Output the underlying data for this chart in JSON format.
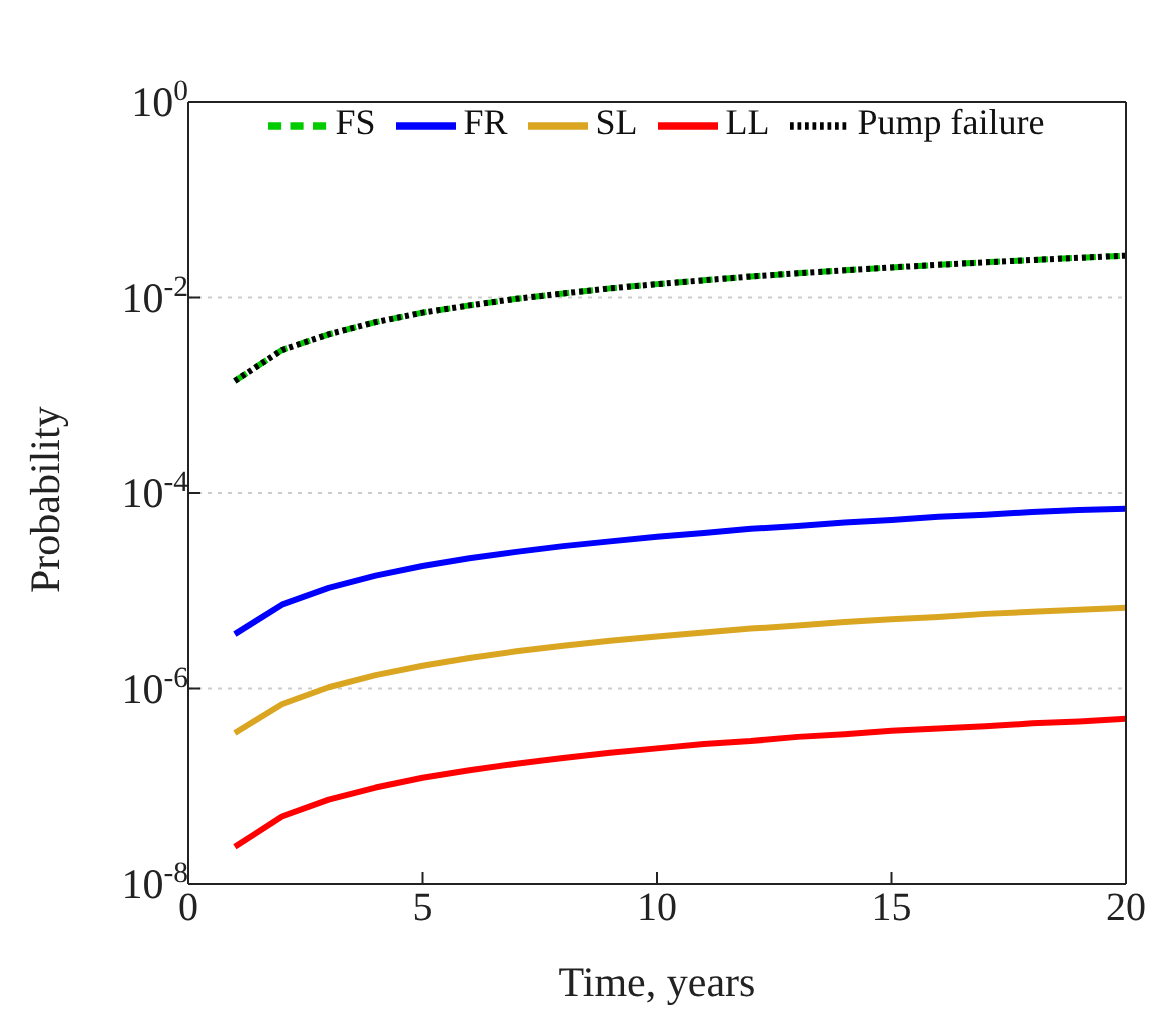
{
  "chart_data": {
    "type": "line",
    "xlabel": "Time, years",
    "ylabel": "Probability",
    "x": [
      1,
      2,
      3,
      4,
      5,
      6,
      7,
      8,
      9,
      10,
      11,
      12,
      13,
      14,
      15,
      16,
      17,
      18,
      19,
      20
    ],
    "series": [
      {
        "name": "FS",
        "color": "#00cc00",
        "line_style": "dashed",
        "values": [
          0.0014,
          0.0029,
          0.0042,
          0.0056,
          0.007,
          0.0083,
          0.0097,
          0.011,
          0.0124,
          0.0137,
          0.015,
          0.0164,
          0.0177,
          0.019,
          0.0203,
          0.0216,
          0.0229,
          0.0242,
          0.0255,
          0.0268
        ]
      },
      {
        "name": "FR",
        "color": "#0000ff",
        "line_style": "solid",
        "values": [
          3.6e-06,
          7.2e-06,
          1.07e-05,
          1.43e-05,
          1.79e-05,
          2.15e-05,
          2.5e-05,
          2.86e-05,
          3.2e-05,
          3.57e-05,
          3.9e-05,
          4.3e-05,
          4.6e-05,
          5e-05,
          5.3e-05,
          5.7e-05,
          6e-05,
          6.4e-05,
          6.7e-05,
          6.9e-05
        ]
      },
      {
        "name": "SL",
        "color": "#daa520",
        "line_style": "solid",
        "values": [
          3.5e-07,
          6.9e-07,
          1.03e-06,
          1.37e-06,
          1.71e-06,
          2.05e-06,
          2.4e-06,
          2.74e-06,
          3.08e-06,
          3.4e-06,
          3.75e-06,
          4.1e-06,
          4.4e-06,
          4.8e-06,
          5.1e-06,
          5.4e-06,
          5.8e-06,
          6.1e-06,
          6.4e-06,
          6.7e-06
        ]
      },
      {
        "name": "LL",
        "color": "#ff0000",
        "line_style": "solid",
        "values": [
          2.4e-08,
          4.9e-08,
          7.3e-08,
          9.7e-08,
          1.22e-07,
          1.46e-07,
          1.7e-07,
          1.95e-07,
          2.2e-07,
          2.44e-07,
          2.7e-07,
          2.9e-07,
          3.2e-07,
          3.4e-07,
          3.7e-07,
          3.9e-07,
          4.1e-07,
          4.4e-07,
          4.6e-07,
          4.9e-07
        ]
      },
      {
        "name": "Pump failure",
        "color": "#000000",
        "line_style": "dotted",
        "values": [
          0.0014,
          0.0029,
          0.0042,
          0.0056,
          0.007,
          0.0083,
          0.0097,
          0.011,
          0.0124,
          0.0137,
          0.015,
          0.0164,
          0.0177,
          0.019,
          0.0203,
          0.0216,
          0.0229,
          0.0242,
          0.0255,
          0.0268
        ]
      }
    ],
    "xlim": [
      0,
      20
    ],
    "xticks": [
      0,
      5,
      10,
      15,
      20
    ],
    "ylim": [
      1e-08,
      1
    ],
    "yticks": [
      {
        "value": 1e-08,
        "label": "10$^{-8}$"
      },
      {
        "value": 1e-06,
        "label": "10$^{-6}$"
      },
      {
        "value": 0.0001,
        "label": "10$^{-4}$"
      },
      {
        "value": 0.01,
        "label": "10$^{-2}$"
      },
      {
        "value": 1,
        "label": "10$^{0}$"
      }
    ],
    "log": "y",
    "grid": "y",
    "legend": "top",
    "marker": "none"
  }
}
